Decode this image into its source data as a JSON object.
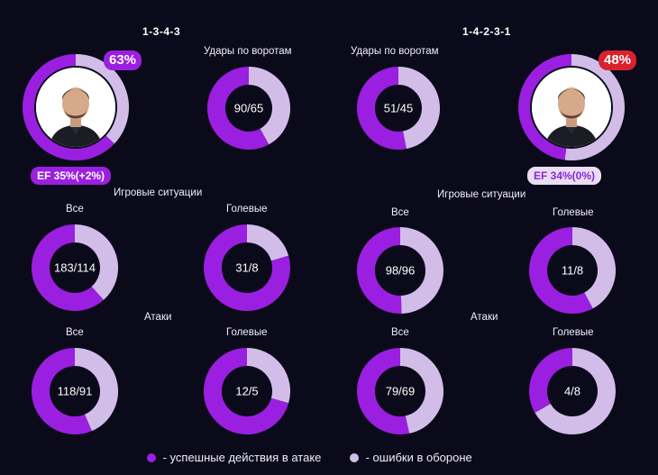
{
  "colors": {
    "attack": "#9b1fe0",
    "defense": "#d2bde8",
    "team1_badge": "#9b1fe0",
    "team2_badge": "#d8232f",
    "team2_ef_badge": "#e9ddf3",
    "team2_ef_text": "#8a2ad0"
  },
  "teams": [
    {
      "formation": "1-3-4-3",
      "possession_pct_label": "63%",
      "possession": 63,
      "ef_label": "EF 35%(+2%)"
    },
    {
      "formation": "1-4-2-3-1",
      "possession_pct_label": "48%",
      "possession": 48,
      "ef_label": "EF 34%(0%)"
    }
  ],
  "sections": {
    "shots": "Удары по воротам",
    "game_situations": "Игровые ситуации",
    "attacks": "Атаки",
    "all": "Все",
    "goal": "Голевые"
  },
  "legend": {
    "attack": " - успешные действия в атаке",
    "defense": " - ошибки в обороне"
  },
  "chart_data": [
    {
      "type": "pie",
      "team": "1-3-4-3",
      "group": "Удары по воротам",
      "label": "90/65",
      "values": [
        90,
        65
      ]
    },
    {
      "type": "pie",
      "team": "1-4-2-3-1",
      "group": "Удары по воротам",
      "label": "51/45",
      "values": [
        51,
        45
      ]
    },
    {
      "type": "pie",
      "team": "1-3-4-3",
      "group": "Игровые ситуации",
      "sub": "Все",
      "label": "183/114",
      "values": [
        183,
        114
      ]
    },
    {
      "type": "pie",
      "team": "1-3-4-3",
      "group": "Игровые ситуации",
      "sub": "Голевые",
      "label": "31/8",
      "values": [
        31,
        8
      ]
    },
    {
      "type": "pie",
      "team": "1-4-2-3-1",
      "group": "Игровые ситуации",
      "sub": "Все",
      "label": "98/96",
      "values": [
        98,
        96
      ]
    },
    {
      "type": "pie",
      "team": "1-4-2-3-1",
      "group": "Игровые ситуации",
      "sub": "Голевые",
      "label": "11/8",
      "values": [
        11,
        8
      ]
    },
    {
      "type": "pie",
      "team": "1-3-4-3",
      "group": "Атаки",
      "sub": "Все",
      "label": "118/91",
      "values": [
        118,
        91
      ]
    },
    {
      "type": "pie",
      "team": "1-3-4-3",
      "group": "Атаки",
      "sub": "Голевые",
      "label": "12/5",
      "values": [
        12,
        5
      ]
    },
    {
      "type": "pie",
      "team": "1-4-2-3-1",
      "group": "Атаки",
      "sub": "Все",
      "label": "79/69",
      "values": [
        79,
        69
      ]
    },
    {
      "type": "pie",
      "team": "1-4-2-3-1",
      "group": "Атаки",
      "sub": "Голевые",
      "label": "4/8",
      "values": [
        4,
        8
      ]
    }
  ]
}
